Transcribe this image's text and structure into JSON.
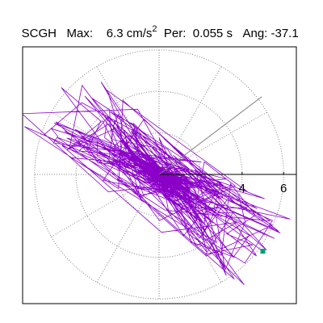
{
  "header": {
    "station": "SCGH",
    "max_label": "Max:",
    "max_value": "6.3 cm/s",
    "max_exp": "2",
    "per_label": "Per:",
    "per_value": "0.055 s",
    "ang_label": "Ang:",
    "ang_value": "-37.1"
  },
  "colors": {
    "trace": "#8b00c9",
    "marker": "#00a070",
    "grid": "#808080",
    "axis": "#000000"
  },
  "chart_data": {
    "type": "polar-particle-motion",
    "title": "",
    "radial_max": 6.3,
    "radial_ticks": [
      2,
      4,
      6
    ],
    "radial_tick_labels": [
      "4",
      "6"
    ],
    "angle_spokes_deg": [
      0,
      30,
      60,
      90,
      120,
      150,
      180,
      210,
      240,
      270,
      300,
      330
    ],
    "axis_angle_deg": 0,
    "secondary_axis_deg": 37.1,
    "end_marker": {
      "x": 5.0,
      "y": -3.7
    },
    "peak_angle_deg": -37.1,
    "note": "Trace is an approximate ground-motion particle path in cm/s² units, elongated along the peak angle."
  }
}
